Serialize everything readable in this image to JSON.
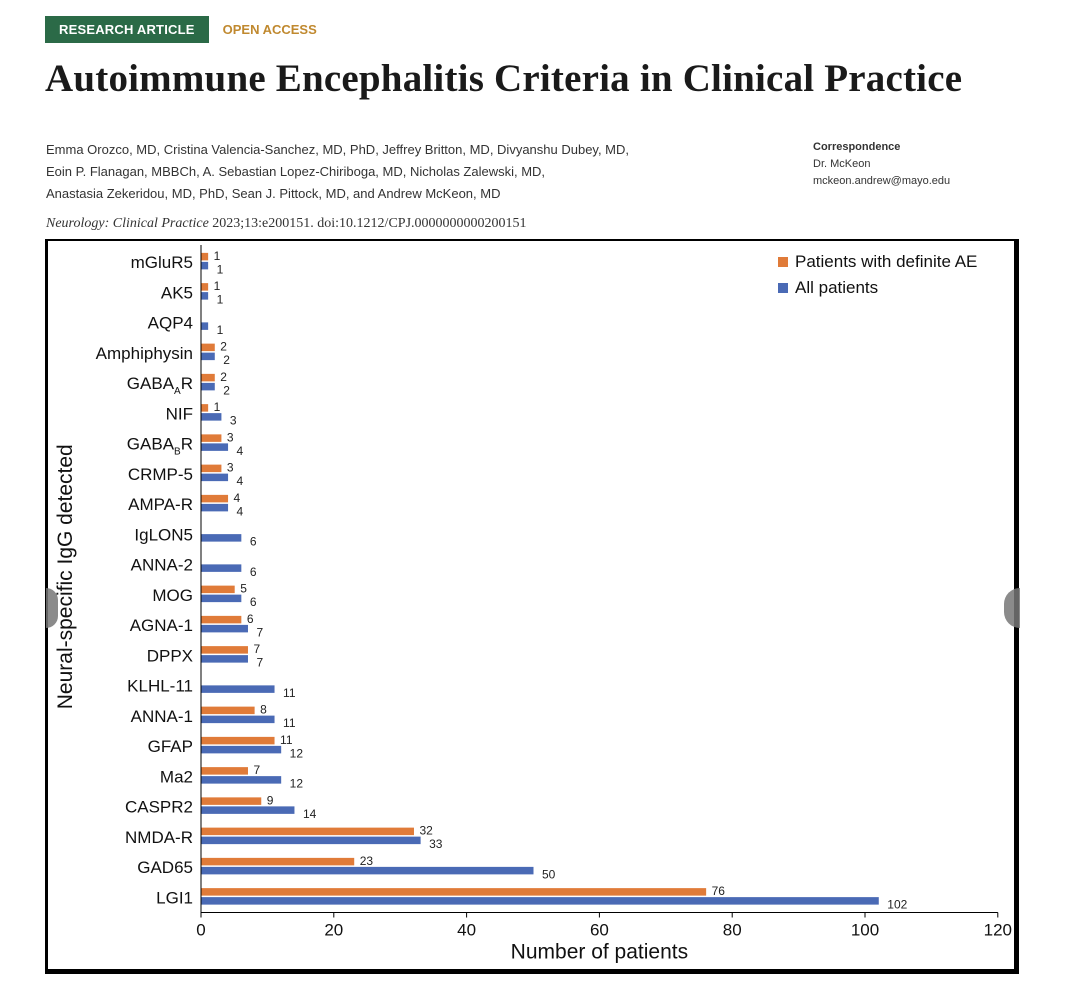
{
  "header": {
    "badge": "RESEARCH ARTICLE",
    "access": "OPEN ACCESS",
    "title": "Autoimmune Encephalitis Criteria in Clinical Practice",
    "authors": [
      "Emma Orozco, MD, Cristina Valencia-Sanchez, MD, PhD, Jeffrey Britton, MD, Divyanshu Dubey, MD,",
      "Eoin P. Flanagan, MBBCh, A. Sebastian Lopez-Chiriboga, MD, Nicholas Zalewski, MD,",
      "Anastasia Zekeridou, MD, PhD, Sean J. Pittock, MD, and Andrew McKeon, MD"
    ],
    "correspondence": {
      "heading": "Correspondence",
      "name": "Dr. McKeon",
      "email": "mckeon.andrew@mayo.edu"
    },
    "citation": {
      "journal": "Neurology: Clinical Practice",
      "details": " 2023;13:e200151. doi:10.1212/CPJ.0000000000200151"
    }
  },
  "chart_data": {
    "type": "bar",
    "orientation": "horizontal",
    "title": "",
    "xlabel": "Number of patients",
    "ylabel": "Neural-specific IgG detected",
    "xlim": [
      0,
      120
    ],
    "xticks": [
      0,
      20,
      40,
      60,
      80,
      100,
      120
    ],
    "legend_position": "top-right",
    "categories": [
      {
        "label": "mGluR5"
      },
      {
        "label": "AK5"
      },
      {
        "label": "AQP4"
      },
      {
        "label": "Amphiphysin"
      },
      {
        "label": "GABA",
        "sub": "A",
        "suffix": "R"
      },
      {
        "label": "NIF"
      },
      {
        "label": "GABA",
        "sub": "B",
        "suffix": "R"
      },
      {
        "label": "CRMP-5"
      },
      {
        "label": "AMPA-R"
      },
      {
        "label": "IgLON5"
      },
      {
        "label": "ANNA-2"
      },
      {
        "label": "MOG"
      },
      {
        "label": "AGNA-1"
      },
      {
        "label": "DPPX"
      },
      {
        "label": "KLHL-11"
      },
      {
        "label": "ANNA-1"
      },
      {
        "label": "GFAP"
      },
      {
        "label": "Ma2"
      },
      {
        "label": "CASPR2"
      },
      {
        "label": "NMDA-R"
      },
      {
        "label": "GAD65"
      },
      {
        "label": "LGI1"
      }
    ],
    "series": [
      {
        "name": "Patients with definite AE",
        "color": "#e07b39",
        "values": [
          1,
          1,
          null,
          2,
          2,
          1,
          3,
          3,
          4,
          null,
          null,
          5,
          6,
          7,
          null,
          8,
          11,
          7,
          9,
          32,
          23,
          76
        ]
      },
      {
        "name": "All patients",
        "color": "#4a6ab5",
        "values": [
          1,
          1,
          1,
          2,
          2,
          3,
          4,
          4,
          4,
          6,
          6,
          6,
          7,
          7,
          11,
          11,
          12,
          12,
          14,
          33,
          50,
          102
        ]
      }
    ]
  }
}
